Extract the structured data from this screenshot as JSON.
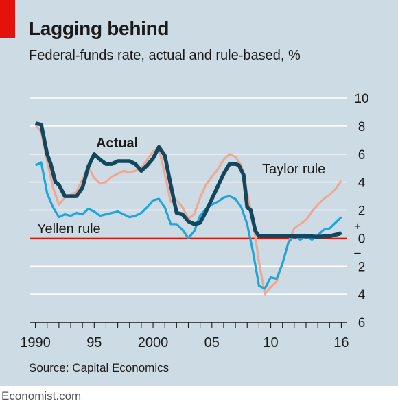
{
  "header": {
    "title": "Lagging behind",
    "subtitle": "Federal-funds rate, actual and rule-based, %"
  },
  "footer": {
    "source": "Source: Capital Economics",
    "brand": "Economist.com"
  },
  "colors": {
    "accent_red": "#e3120b",
    "background": "#cddbe5",
    "actual": "#12475e",
    "taylor": "#eda993",
    "yellen": "#1fa5db",
    "zero_line": "#e3120b",
    "gridline": "#ffffff"
  },
  "chart_data": {
    "type": "line",
    "title": "Lagging behind",
    "subtitle": "Federal-funds rate, actual and rule-based, %",
    "xlim": [
      1989.5,
      2016.5
    ],
    "ylim": [
      -6,
      10
    ],
    "x_ticks": [
      {
        "value": 1990,
        "label": "1990"
      },
      {
        "value": 1995,
        "label": "95"
      },
      {
        "value": 2000,
        "label": "2000"
      },
      {
        "value": 2005,
        "label": "05"
      },
      {
        "value": 2010,
        "label": "10"
      },
      {
        "value": 2016,
        "label": "16"
      }
    ],
    "y_ticks": [
      {
        "value": 10,
        "label": "10"
      },
      {
        "value": 8,
        "label": "8"
      },
      {
        "value": 6,
        "label": "6"
      },
      {
        "value": 4,
        "label": "4"
      },
      {
        "value": 2,
        "label": "2"
      },
      {
        "value": 0,
        "label": "0"
      },
      {
        "value": -2,
        "label": "2"
      },
      {
        "value": -4,
        "label": "4"
      },
      {
        "value": -6,
        "label": "6"
      }
    ],
    "sign_labels": {
      "plus": "+",
      "minus": "–"
    },
    "grid": true,
    "series": [
      {
        "name": "Taylor rule",
        "key": "taylor",
        "x": [
          1990.0,
          1990.5,
          1991.0,
          1991.5,
          1992.0,
          1992.5,
          1993.0,
          1993.5,
          1994.0,
          1994.5,
          1995.0,
          1995.5,
          1996.0,
          1996.5,
          1997.0,
          1997.5,
          1998.0,
          1998.5,
          1999.0,
          1999.5,
          2000.0,
          2000.5,
          2001.0,
          2001.5,
          2002.0,
          2002.5,
          2003.0,
          2003.5,
          2004.0,
          2004.5,
          2005.0,
          2005.5,
          2006.0,
          2006.5,
          2007.0,
          2007.5,
          2008.0,
          2008.5,
          2009.0,
          2009.5,
          2010.0,
          2010.5,
          2011.0,
          2011.5,
          2012.0,
          2012.5,
          2013.0,
          2013.5,
          2014.0,
          2014.5,
          2015.0,
          2015.5,
          2016.0
        ],
        "y": [
          8.1,
          7.6,
          5.5,
          3.6,
          2.4,
          2.9,
          3.1,
          3.3,
          4.2,
          5.1,
          4.3,
          3.9,
          4.0,
          4.4,
          4.6,
          4.8,
          4.7,
          4.8,
          5.0,
          5.6,
          6.2,
          6.4,
          4.6,
          2.6,
          2.7,
          2.2,
          1.4,
          1.7,
          2.9,
          3.8,
          4.4,
          4.9,
          5.6,
          6.0,
          5.8,
          5.2,
          3.2,
          1.2,
          -1.7,
          -4.0,
          -3.5,
          -3.1,
          -1.8,
          -0.3,
          0.7,
          1.0,
          1.3,
          1.9,
          2.4,
          2.8,
          3.1,
          3.5,
          4.1
        ]
      },
      {
        "name": "Yellen rule",
        "key": "yellen",
        "x": [
          1990.0,
          1990.5,
          1991.0,
          1991.5,
          1992.0,
          1992.5,
          1993.0,
          1993.5,
          1994.0,
          1994.5,
          1995.0,
          1995.5,
          1996.0,
          1996.5,
          1997.0,
          1997.5,
          1998.0,
          1998.5,
          1999.0,
          1999.5,
          2000.0,
          2000.5,
          2001.0,
          2001.5,
          2002.0,
          2002.5,
          2003.0,
          2003.5,
          2004.0,
          2004.5,
          2005.0,
          2005.5,
          2006.0,
          2006.5,
          2007.0,
          2007.5,
          2008.0,
          2008.5,
          2009.0,
          2009.5,
          2010.0,
          2010.5,
          2011.0,
          2011.5,
          2012.0,
          2012.5,
          2013.0,
          2013.5,
          2014.0,
          2014.5,
          2015.0,
          2015.5,
          2016.0
        ],
        "y": [
          5.2,
          5.4,
          3.2,
          2.2,
          1.5,
          1.7,
          1.6,
          1.8,
          1.7,
          2.1,
          1.9,
          1.6,
          1.7,
          1.8,
          1.9,
          1.7,
          1.5,
          1.6,
          1.8,
          2.2,
          2.7,
          2.8,
          2.2,
          1.0,
          1.0,
          0.6,
          0.0,
          0.5,
          1.6,
          2.1,
          2.4,
          2.6,
          2.9,
          3.0,
          2.8,
          2.2,
          1.0,
          -1.0,
          -3.4,
          -3.6,
          -2.8,
          -2.9,
          -1.8,
          -0.3,
          0.2,
          -0.1,
          0.1,
          -0.1,
          0.2,
          0.6,
          0.7,
          1.1,
          1.5
        ]
      },
      {
        "name": "Actual",
        "key": "actual",
        "x": [
          1990.0,
          1990.5,
          1991.0,
          1991.3,
          1991.7,
          1992.0,
          1992.5,
          1993.0,
          1993.5,
          1994.0,
          1994.5,
          1995.0,
          1995.5,
          1996.0,
          1996.5,
          1997.0,
          1997.5,
          1998.0,
          1998.5,
          1999.0,
          1999.5,
          2000.0,
          2000.5,
          2001.0,
          2001.5,
          2002.0,
          2002.5,
          2003.0,
          2003.5,
          2004.0,
          2004.5,
          2005.0,
          2005.5,
          2006.0,
          2006.5,
          2007.0,
          2007.3,
          2007.7,
          2008.0,
          2008.3,
          2008.7,
          2009.0,
          2010.0,
          2011.0,
          2012.0,
          2013.0,
          2014.0,
          2015.0,
          2015.8,
          2016.0
        ],
        "y": [
          8.2,
          8.1,
          6.0,
          5.3,
          4.0,
          3.8,
          3.0,
          3.0,
          3.0,
          3.6,
          5.1,
          6.0,
          5.6,
          5.3,
          5.3,
          5.5,
          5.5,
          5.5,
          5.3,
          4.8,
          5.2,
          5.7,
          6.5,
          5.9,
          3.8,
          1.8,
          1.7,
          1.2,
          1.0,
          1.1,
          1.9,
          2.8,
          3.7,
          4.6,
          5.3,
          5.3,
          5.2,
          4.5,
          2.2,
          2.0,
          0.5,
          0.15,
          0.15,
          0.15,
          0.15,
          0.15,
          0.1,
          0.15,
          0.3,
          0.4
        ]
      }
    ],
    "annotations": [
      {
        "series": "actual",
        "text": "Actual"
      },
      {
        "series": "taylor",
        "text": "Taylor rule"
      },
      {
        "series": "yellen",
        "text": "Yellen rule"
      }
    ]
  }
}
